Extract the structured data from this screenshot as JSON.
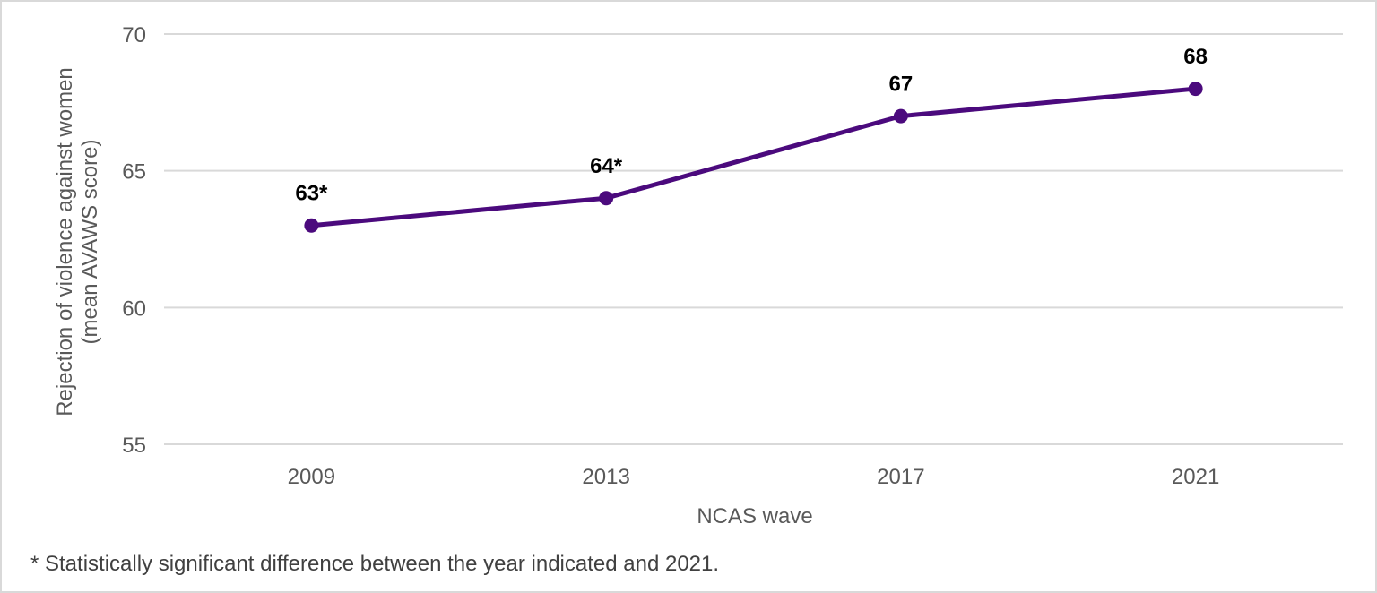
{
  "chart_data": {
    "type": "line",
    "title": "",
    "xlabel": "NCAS wave",
    "ylabel_lines": [
      "Rejection of violence against women",
      "(mean AVAWS score)"
    ],
    "categories": [
      "2009",
      "2013",
      "2017",
      "2021"
    ],
    "values": [
      63,
      64,
      67,
      68
    ],
    "data_labels": [
      "63*",
      "64*",
      "67",
      "68"
    ],
    "ylim": [
      55,
      70
    ],
    "yticks": [
      55,
      60,
      65,
      70
    ],
    "grid": "horizontal",
    "line_color": "#4b0a7d"
  },
  "footnote": "* Statistically significant difference between the year indicated and 2021."
}
